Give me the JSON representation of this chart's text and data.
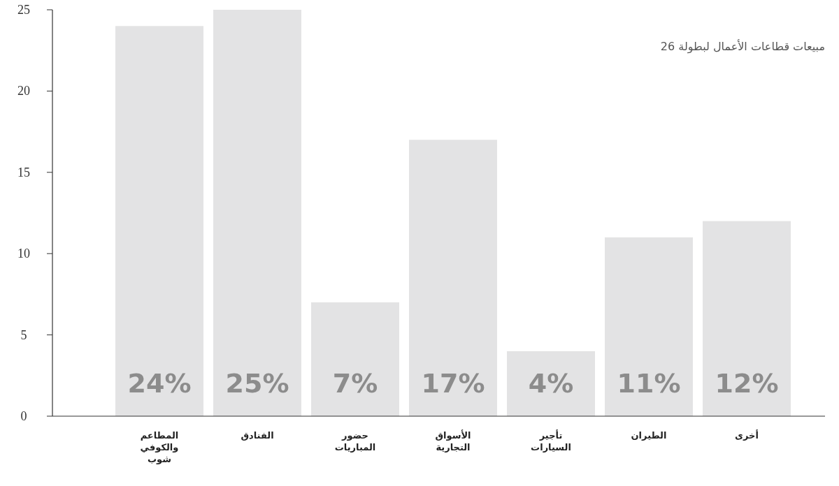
{
  "chart_data": {
    "type": "bar",
    "title": "مبيعات قطاعات الأعمال لبطولة 26",
    "categories": [
      "المطاعم والكوفي شوب",
      "الفنادق",
      "حضور المباريات",
      "الأسواق التجارية",
      "تأجير السيارات",
      "الطيران",
      "أخرى"
    ],
    "values": [
      24,
      25,
      7,
      17,
      4,
      11,
      12
    ],
    "value_labels": [
      "24%",
      "25%",
      "7%",
      "17%",
      "4%",
      "11%",
      "12%"
    ],
    "color": "#e3e3e4",
    "ylim": [
      0,
      25
    ],
    "yticks": [
      0,
      5,
      10,
      15,
      20,
      25
    ],
    "grid": false
  }
}
